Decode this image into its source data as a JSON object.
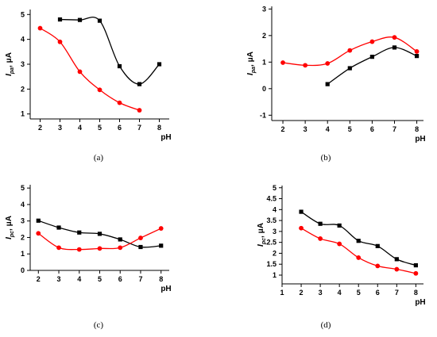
{
  "chart_data": [
    {
      "type": "line",
      "caption": "(a)",
      "ylabel_main": "I",
      "ylabel_sub": "pa",
      "ylabel_unit": ", μA",
      "xlabel": "pH",
      "xlim": [
        1.5,
        8.5
      ],
      "ylim": [
        0.8,
        5.2
      ],
      "xticks": [
        "2",
        "3",
        "4",
        "5",
        "6",
        "7",
        "8"
      ],
      "yticks": [
        "1",
        "2",
        "3",
        "4",
        "5"
      ],
      "series": [
        {
          "color": "#000000",
          "marker": "square",
          "x": [
            3,
            4,
            5,
            6,
            7,
            8
          ],
          "y": [
            4.8,
            4.78,
            4.75,
            2.92,
            2.2,
            3.0
          ]
        },
        {
          "color": "#ff0000",
          "marker": "circle",
          "x": [
            2,
            3,
            4,
            5,
            6,
            7
          ],
          "y": [
            4.45,
            3.9,
            2.7,
            1.97,
            1.45,
            1.15
          ]
        }
      ]
    },
    {
      "type": "line",
      "caption": "(b)",
      "ylabel_main": "I",
      "ylabel_sub": "pa",
      "ylabel_unit": ", μA",
      "xlabel": "pH",
      "xlim": [
        1.5,
        8.3
      ],
      "ylim": [
        -1.2,
        3.1
      ],
      "xticks": [
        "2",
        "3",
        "4",
        "5",
        "6",
        "7",
        "8"
      ],
      "yticks": [
        "-1",
        "0",
        "1",
        "2",
        "3"
      ],
      "series": [
        {
          "color": "#000000",
          "marker": "square",
          "x": [
            4,
            5,
            6,
            7,
            8
          ],
          "y": [
            0.17,
            0.77,
            1.2,
            1.55,
            1.23
          ]
        },
        {
          "color": "#ff0000",
          "marker": "circle",
          "x": [
            2,
            3,
            4,
            5,
            6,
            7,
            8
          ],
          "y": [
            0.98,
            0.88,
            0.95,
            1.44,
            1.77,
            1.93,
            1.4
          ]
        }
      ]
    },
    {
      "type": "line",
      "caption": "(c)",
      "ylabel_main": "I",
      "ylabel_sub": "pc",
      "ylabel_unit": ", μA",
      "xlabel": "pH",
      "xlim": [
        1.6,
        8.4
      ],
      "ylim": [
        0,
        5.2
      ],
      "xticks": [
        "2",
        "3",
        "4",
        "5",
        "6",
        "7",
        "8"
      ],
      "yticks": [
        "0",
        "1",
        "2",
        "3",
        "4",
        "5"
      ],
      "series": [
        {
          "color": "#000000",
          "marker": "square",
          "x": [
            2,
            3,
            4,
            5,
            6,
            7,
            8
          ],
          "y": [
            3.02,
            2.6,
            2.3,
            2.22,
            1.88,
            1.42,
            1.5
          ]
        },
        {
          "color": "#ff0000",
          "marker": "circle",
          "x": [
            2,
            3,
            4,
            5,
            6,
            7,
            8
          ],
          "y": [
            2.25,
            1.38,
            1.27,
            1.33,
            1.38,
            1.97,
            2.55
          ]
        }
      ]
    },
    {
      "type": "line",
      "caption": "(d)",
      "ylabel_main": "I",
      "ylabel_sub": "pc",
      "ylabel_unit": ", μA",
      "xlabel": "pH",
      "xlim": [
        1,
        8.4
      ],
      "ylim": [
        0.6,
        5.1
      ],
      "xticks": [
        "1",
        "2",
        "3",
        "4",
        "5",
        "6",
        "7",
        "8"
      ],
      "yticks": [
        "1",
        "1.5",
        "2",
        "2.5",
        "3",
        "3.5",
        "4",
        "4.5",
        "5"
      ],
      "series": [
        {
          "color": "#000000",
          "marker": "square",
          "x": [
            2,
            3,
            4,
            5,
            6,
            7,
            8
          ],
          "y": [
            3.9,
            3.35,
            3.27,
            2.57,
            2.33,
            1.73,
            1.45
          ]
        },
        {
          "color": "#ff0000",
          "marker": "circle",
          "x": [
            2,
            3,
            4,
            5,
            6,
            7,
            8
          ],
          "y": [
            3.15,
            2.67,
            2.43,
            1.8,
            1.42,
            1.27,
            1.08
          ]
        }
      ]
    }
  ]
}
